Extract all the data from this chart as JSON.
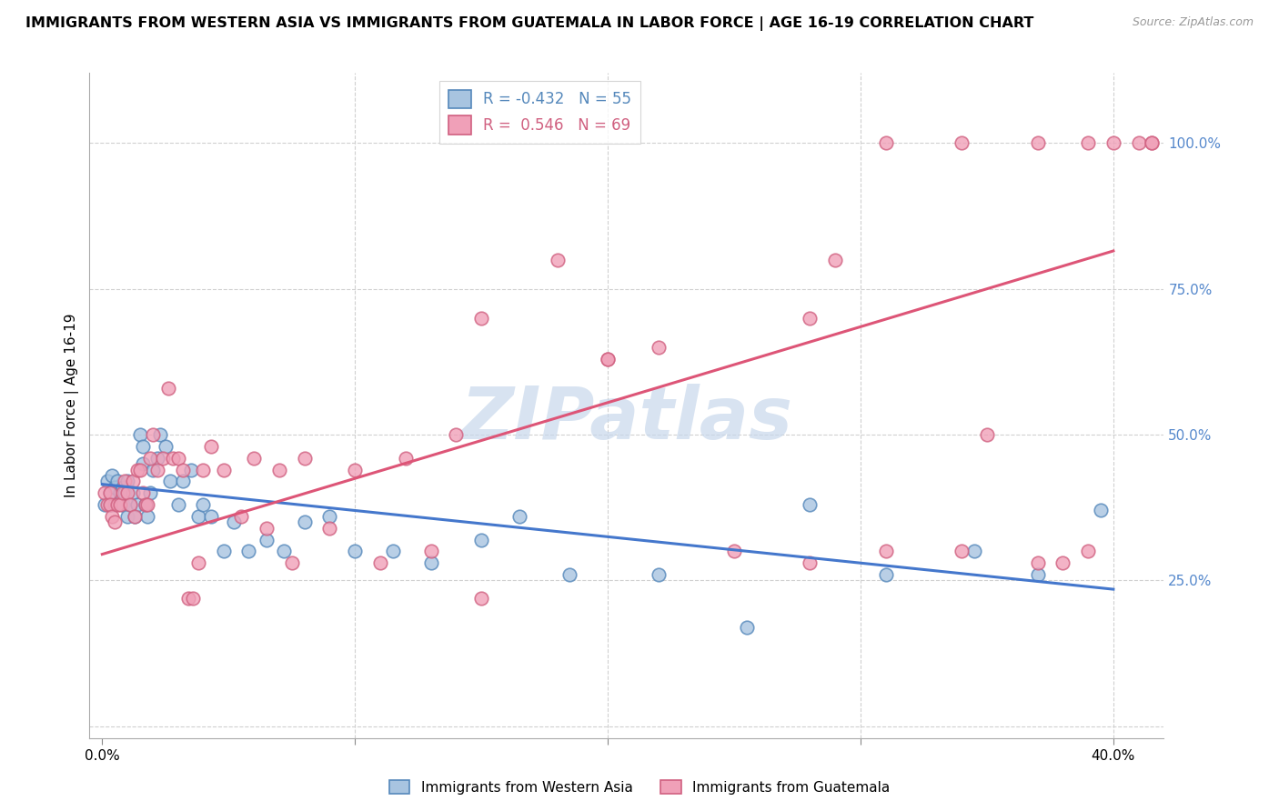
{
  "title": "IMMIGRANTS FROM WESTERN ASIA VS IMMIGRANTS FROM GUATEMALA IN LABOR FORCE | AGE 16-19 CORRELATION CHART",
  "source": "Source: ZipAtlas.com",
  "ylabel": "In Labor Force | Age 16-19",
  "yticks": [
    0.0,
    0.25,
    0.5,
    0.75,
    1.0
  ],
  "ytick_labels": [
    "",
    "25.0%",
    "50.0%",
    "75.0%",
    "100.0%"
  ],
  "xticks": [
    0.0,
    0.1,
    0.2,
    0.3,
    0.4
  ],
  "xtick_labels": [
    "0.0%",
    "",
    "",
    "",
    "40.0%"
  ],
  "legend_blue_r": "-0.432",
  "legend_blue_n": "55",
  "legend_pink_r": "0.546",
  "legend_pink_n": "69",
  "blue_face_color": "#a8c4e0",
  "blue_edge_color": "#5588bb",
  "pink_face_color": "#f0a0b8",
  "pink_edge_color": "#d06080",
  "blue_line_color": "#4477cc",
  "pink_line_color": "#dd5577",
  "watermark_color": "#c8d8ec",
  "watermark": "ZIPatlas",
  "blue_scatter_x": [
    0.001,
    0.002,
    0.003,
    0.003,
    0.004,
    0.005,
    0.005,
    0.006,
    0.007,
    0.008,
    0.008,
    0.009,
    0.01,
    0.01,
    0.011,
    0.012,
    0.013,
    0.014,
    0.015,
    0.016,
    0.016,
    0.017,
    0.018,
    0.019,
    0.02,
    0.022,
    0.023,
    0.025,
    0.027,
    0.03,
    0.032,
    0.035,
    0.038,
    0.04,
    0.043,
    0.048,
    0.052,
    0.058,
    0.065,
    0.072,
    0.08,
    0.09,
    0.1,
    0.115,
    0.13,
    0.15,
    0.165,
    0.185,
    0.22,
    0.255,
    0.28,
    0.31,
    0.345,
    0.37,
    0.395
  ],
  "blue_scatter_y": [
    0.38,
    0.42,
    0.4,
    0.38,
    0.43,
    0.41,
    0.38,
    0.42,
    0.4,
    0.38,
    0.41,
    0.4,
    0.36,
    0.42,
    0.38,
    0.4,
    0.36,
    0.38,
    0.5,
    0.45,
    0.48,
    0.38,
    0.36,
    0.4,
    0.44,
    0.46,
    0.5,
    0.48,
    0.42,
    0.38,
    0.42,
    0.44,
    0.36,
    0.38,
    0.36,
    0.3,
    0.35,
    0.3,
    0.32,
    0.3,
    0.35,
    0.36,
    0.3,
    0.3,
    0.28,
    0.32,
    0.36,
    0.26,
    0.26,
    0.17,
    0.38,
    0.26,
    0.3,
    0.26,
    0.37
  ],
  "pink_scatter_x": [
    0.001,
    0.002,
    0.003,
    0.003,
    0.004,
    0.005,
    0.006,
    0.007,
    0.008,
    0.009,
    0.01,
    0.011,
    0.012,
    0.013,
    0.014,
    0.015,
    0.016,
    0.017,
    0.018,
    0.019,
    0.02,
    0.022,
    0.024,
    0.026,
    0.028,
    0.03,
    0.032,
    0.034,
    0.036,
    0.038,
    0.04,
    0.043,
    0.048,
    0.055,
    0.06,
    0.065,
    0.07,
    0.075,
    0.08,
    0.09,
    0.1,
    0.11,
    0.12,
    0.13,
    0.14,
    0.15,
    0.18,
    0.2,
    0.22,
    0.25,
    0.28,
    0.31,
    0.34,
    0.37,
    0.39,
    0.4,
    0.41,
    0.415,
    0.415,
    0.28,
    0.31,
    0.35,
    0.37,
    0.38,
    0.39,
    0.29,
    0.2,
    0.34,
    0.15
  ],
  "pink_scatter_y": [
    0.4,
    0.38,
    0.4,
    0.38,
    0.36,
    0.35,
    0.38,
    0.38,
    0.4,
    0.42,
    0.4,
    0.38,
    0.42,
    0.36,
    0.44,
    0.44,
    0.4,
    0.38,
    0.38,
    0.46,
    0.5,
    0.44,
    0.46,
    0.58,
    0.46,
    0.46,
    0.44,
    0.22,
    0.22,
    0.28,
    0.44,
    0.48,
    0.44,
    0.36,
    0.46,
    0.34,
    0.44,
    0.28,
    0.46,
    0.34,
    0.44,
    0.28,
    0.46,
    0.3,
    0.5,
    0.7,
    0.8,
    0.63,
    0.65,
    0.3,
    0.7,
    1.0,
    1.0,
    1.0,
    1.0,
    1.0,
    1.0,
    1.0,
    1.0,
    0.28,
    0.3,
    0.5,
    0.28,
    0.28,
    0.3,
    0.8,
    0.63,
    0.3,
    0.22
  ],
  "blue_line_x0": 0.0,
  "blue_line_x1": 0.4,
  "blue_line_y0": 0.415,
  "blue_line_y1": 0.235,
  "pink_line_x0": 0.0,
  "pink_line_x1": 0.4,
  "pink_line_y0": 0.295,
  "pink_line_y1": 0.815,
  "xlim": [
    -0.005,
    0.42
  ],
  "ylim": [
    -0.02,
    1.12
  ],
  "background_color": "#ffffff",
  "grid_color": "#d0d0d0",
  "tick_color": "#5588cc",
  "title_fontsize": 11.5,
  "axis_label_fontsize": 11,
  "scatter_size": 110,
  "scatter_linewidth": 1.2
}
